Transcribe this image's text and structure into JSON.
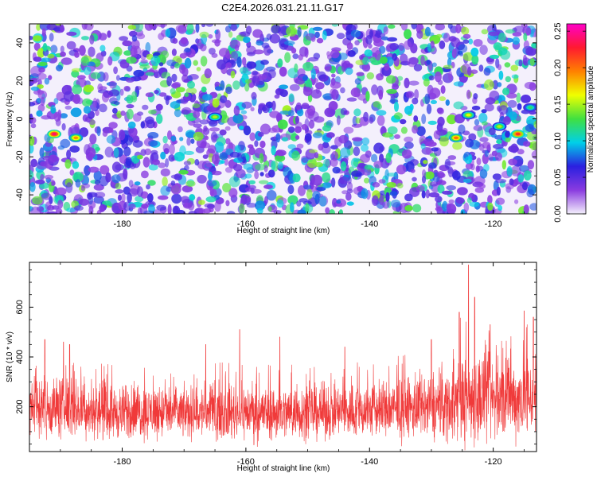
{
  "figure": {
    "title": "C2E4.2026.031.21.11.G17"
  },
  "chart_data": [
    {
      "type": "heatmap",
      "title": "C2E4.2026.031.21.11.G17",
      "xlabel": "Height of straight line (km)",
      "ylabel": "Frequency (Hz)",
      "xlim": [
        -195,
        -113
      ],
      "ylim": [
        -50,
        50
      ],
      "xticks": [
        -180,
        -160,
        -140,
        -120
      ],
      "yticks": [
        -40,
        -20,
        0,
        20,
        40
      ],
      "colorbar": {
        "label": "Normalized spectral amplitude",
        "range": [
          0,
          0.26
        ],
        "ticks": [
          "0.00",
          "0.05",
          "0.10",
          "0.15",
          "0.20",
          "0.25"
        ],
        "colors": [
          "#f4f0fc",
          "#8a3be0",
          "#2a20e0",
          "#00d0e8",
          "#40e040",
          "#f0ff00",
          "#ff8000",
          "#ff1a30",
          "#ff00c8"
        ]
      },
      "hotspots": [
        {
          "x": -191.0,
          "y": -8,
          "value": 0.24
        },
        {
          "x": -187.5,
          "y": -10,
          "value": 0.19
        },
        {
          "x": -165.0,
          "y": 1,
          "value": 0.15
        },
        {
          "x": -126.0,
          "y": -10,
          "value": 0.2
        },
        {
          "x": -124.0,
          "y": 2,
          "value": 0.16
        },
        {
          "x": -119.0,
          "y": -4,
          "value": 0.15
        },
        {
          "x": -116.0,
          "y": -8,
          "value": 0.22
        },
        {
          "x": -114.0,
          "y": 6,
          "value": 0.12
        }
      ]
    },
    {
      "type": "line",
      "xlabel": "Height of straight line (km)",
      "ylabel": "SNR (10 * v/v)",
      "xlim": [
        -195,
        -113
      ],
      "ylim": [
        20,
        780
      ],
      "xticks": [
        -180,
        -160,
        -140,
        -120
      ],
      "yticks": [
        200,
        400,
        600
      ],
      "color": "#f03a3a",
      "envelope": {
        "x": [
          -195,
          -190,
          -185,
          -180,
          -175,
          -170,
          -165,
          -160,
          -155,
          -150,
          -145,
          -140,
          -135,
          -130,
          -127,
          -125,
          -122,
          -120,
          -117,
          -113
        ],
        "baseline": [
          190,
          200,
          185,
          175,
          180,
          175,
          180,
          180,
          175,
          180,
          180,
          185,
          190,
          195,
          210,
          230,
          240,
          230,
          230,
          245
        ],
        "spread": [
          110,
          130,
          110,
          110,
          110,
          105,
          110,
          115,
          110,
          110,
          110,
          115,
          120,
          130,
          150,
          190,
          200,
          170,
          160,
          180
        ]
      },
      "peaks": [
        {
          "x": -192.5,
          "y": 470
        },
        {
          "x": -189.5,
          "y": 460
        },
        {
          "x": -188.5,
          "y": 450
        },
        {
          "x": -166.5,
          "y": 450
        },
        {
          "x": -161.0,
          "y": 510
        },
        {
          "x": -154.5,
          "y": 480
        },
        {
          "x": -144.0,
          "y": 440
        },
        {
          "x": -130.0,
          "y": 470
        },
        {
          "x": -125.5,
          "y": 580
        },
        {
          "x": -124.0,
          "y": 770
        },
        {
          "x": -123.0,
          "y": 640
        },
        {
          "x": -120.5,
          "y": 530
        },
        {
          "x": -115.0,
          "y": 585
        },
        {
          "x": -113.5,
          "y": 560
        }
      ]
    }
  ]
}
